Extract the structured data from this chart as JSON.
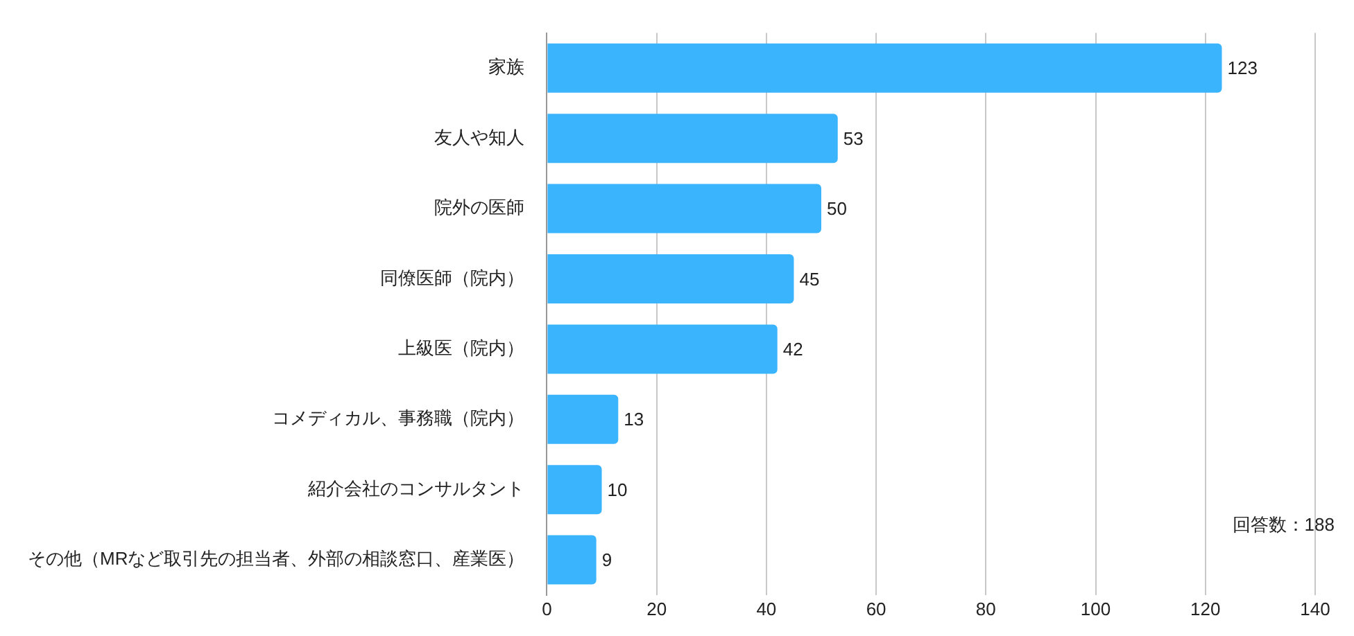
{
  "chart_data": {
    "type": "bar",
    "orientation": "horizontal",
    "categories": [
      "家族",
      "友人や知人",
      "院外の医師",
      "同僚医師（院内）",
      "上級医（院内）",
      "コメディカル、事務職（院内）",
      "紹介会社のコンサルタント",
      "その他（MRなど取引先の担当者、外部の相談窓口、産業医）"
    ],
    "values": [
      123,
      53,
      50,
      45,
      42,
      13,
      10,
      9
    ],
    "color": "#3bb4fe",
    "xlim": [
      0,
      140
    ],
    "xticks": [
      0,
      20,
      40,
      60,
      80,
      100,
      120,
      140
    ],
    "grid": "x",
    "legend": false,
    "data_labels": true,
    "annotations": [
      "回答数：188"
    ]
  }
}
